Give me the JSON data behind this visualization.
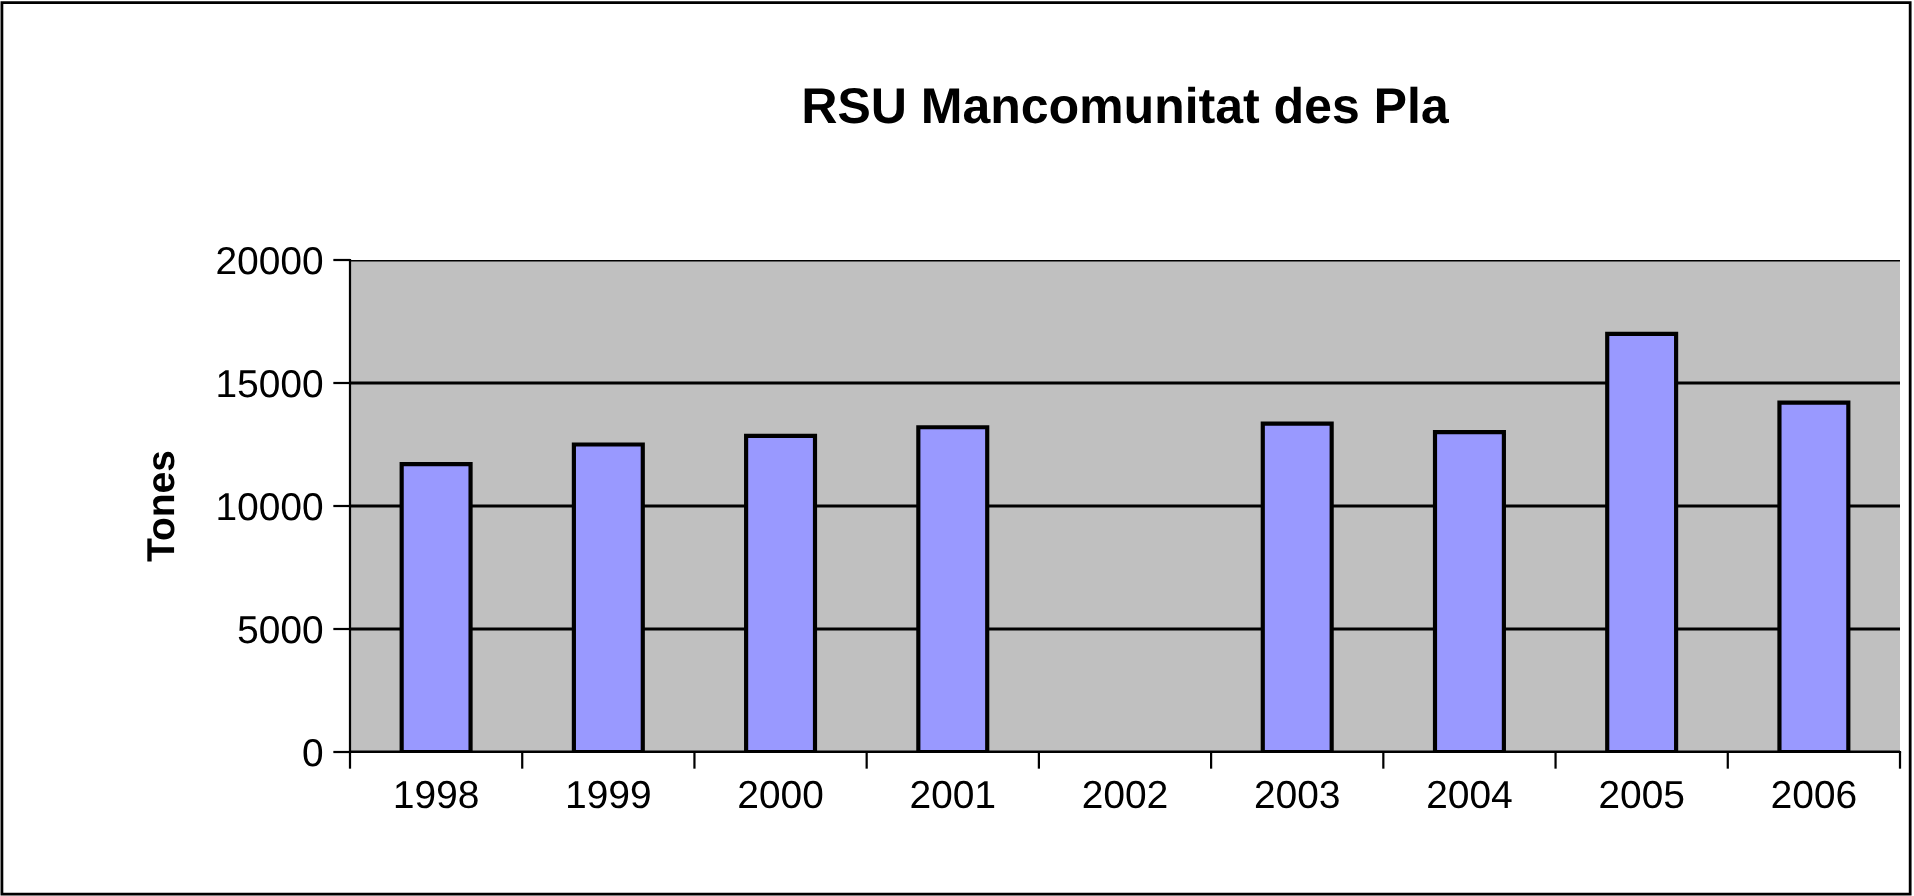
{
  "chart_data": {
    "type": "bar",
    "title": "RSU Mancomunitat des Pla",
    "ylabel": "Tones",
    "categories": [
      "1998",
      "1999",
      "2000",
      "2001",
      "2002",
      "2003",
      "2004",
      "2005",
      "2006"
    ],
    "values": [
      11700,
      12500,
      12850,
      13200,
      null,
      13350,
      13000,
      17000,
      14200
    ],
    "color": "#9999ff",
    "ylim": [
      0,
      20000
    ],
    "yticks": [
      0,
      5000,
      10000,
      15000,
      20000
    ],
    "grid": "y",
    "legend": false
  }
}
